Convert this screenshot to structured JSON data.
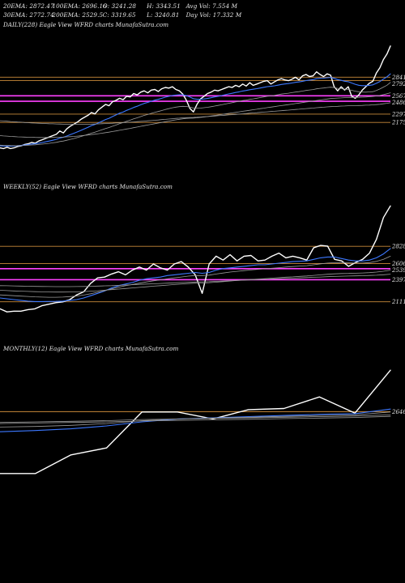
{
  "header": {
    "row1": [
      "20EMA: 2872.47",
      "100EMA: 2696.16",
      "O: 3241.28",
      "H: 3343.51",
      "Avg Vol: 7.554  M"
    ],
    "row2": [
      "30EMA: 2772.74",
      "200EMA: 2529.5",
      "C: 3319.65",
      "L: 3240.81",
      "Day Vol: 17.332  M"
    ]
  },
  "colors": {
    "price": "#ffffff",
    "blue_ema": "#3c78ff",
    "magenta": "#ff40ff",
    "orange": "#c98a3a",
    "gray": "#9a9a9a",
    "background": "#000000"
  },
  "chart_data": [
    {
      "type": "line",
      "title": "DAILY(228) Eagle  View  WFRD charts MunafaSutra.com",
      "levels": [
        2841,
        2792,
        2567,
        2486,
        2297,
        2175
      ],
      "level_labels": [
        "2841",
        "2792",
        "2567",
        "2486",
        "2297",
        "2175"
      ],
      "ylim": [
        1450,
        3500
      ],
      "series": [
        {
          "role": "price",
          "values": [
            1800,
            1790,
            1810,
            1790,
            1800,
            1820,
            1830,
            1850,
            1860,
            1880,
            1870,
            1900,
            1920,
            1940,
            1960,
            1980,
            2000,
            2050,
            2020,
            2080,
            2120,
            2150,
            2180,
            2220,
            2250,
            2280,
            2320,
            2300,
            2360,
            2400,
            2440,
            2420,
            2480,
            2500,
            2530,
            2510,
            2560,
            2550,
            2600,
            2580,
            2620,
            2640,
            2610,
            2650,
            2660,
            2630,
            2670,
            2690,
            2680,
            2700,
            2660,
            2640,
            2590,
            2500,
            2380,
            2330,
            2440,
            2520,
            2560,
            2600,
            2620,
            2650,
            2640,
            2660,
            2680,
            2700,
            2690,
            2720,
            2700,
            2740,
            2710,
            2760,
            2720,
            2740,
            2760,
            2780,
            2790,
            2740,
            2770,
            2800,
            2820,
            2800,
            2790,
            2810,
            2840,
            2800,
            2860,
            2880,
            2850,
            2860,
            2920,
            2880,
            2850,
            2890,
            2870,
            2700,
            2640,
            2700,
            2650,
            2700,
            2560,
            2530,
            2580,
            2650,
            2700,
            2750,
            2780,
            2900,
            2980,
            3100,
            3180,
            3300
          ]
        },
        {
          "role": "ema20",
          "values": [
            1830,
            1828,
            1826,
            1826,
            1828,
            1832,
            1836,
            1842,
            1849,
            1856,
            1862,
            1870,
            1879,
            1890,
            1900,
            1912,
            1925,
            1945,
            1957,
            1975,
            1995,
            2015,
            2035,
            2058,
            2080,
            2103,
            2128,
            2145,
            2168,
            2192,
            2218,
            2236,
            2262,
            2285,
            2310,
            2327,
            2352,
            2372,
            2395,
            2413,
            2435,
            2455,
            2469,
            2487,
            2503,
            2514,
            2530,
            2546,
            2558,
            2572,
            2578,
            2582,
            2580,
            2570,
            2548,
            2524,
            2516,
            2516,
            2520,
            2528,
            2538,
            2550,
            2559,
            2570,
            2582,
            2594,
            2604,
            2616,
            2625,
            2637,
            2645,
            2656,
            2663,
            2672,
            2681,
            2692,
            2702,
            2706,
            2713,
            2723,
            2734,
            2741,
            2747,
            2755,
            2765,
            2770,
            2780,
            2791,
            2798,
            2805,
            2818,
            2824,
            2827,
            2833,
            2837,
            2823,
            2805,
            2795,
            2781,
            2774,
            2755,
            2736,
            2722,
            2716,
            2716,
            2721,
            2728,
            2750,
            2776,
            2812,
            2846,
            2890
          ]
        },
        {
          "role": "ema30",
          "values": [
            1840,
            1837,
            1836,
            1834,
            1833,
            1833,
            1834,
            1836,
            1840,
            1843,
            1846,
            1850,
            1855,
            1861,
            1867,
            1874,
            1882,
            1893,
            1901,
            1912,
            1925,
            1938,
            1952,
            1967,
            1983,
            2000,
            2017,
            2031,
            2048,
            2066,
            2085,
            2100,
            2119,
            2137,
            2157,
            2172,
            2191,
            2208,
            2227,
            2243,
            2261,
            2278,
            2292,
            2308,
            2323,
            2335,
            2350,
            2365,
            2377,
            2390,
            2400,
            2407,
            2412,
            2410,
            2400,
            2387,
            2384,
            2386,
            2391,
            2398,
            2406,
            2416,
            2425,
            2434,
            2445,
            2456,
            2465,
            2476,
            2485,
            2496,
            2504,
            2514,
            2522,
            2531,
            2540,
            2550,
            2560,
            2566,
            2573,
            2582,
            2592,
            2599,
            2605,
            2613,
            2622,
            2628,
            2636,
            2646,
            2652,
            2659,
            2669,
            2676,
            2681,
            2688,
            2693,
            2687,
            2677,
            2672,
            2664,
            2659,
            2648,
            2635,
            2626,
            2622,
            2621,
            2624,
            2628,
            2645,
            2667,
            2694,
            2722,
            2763
          ]
        },
        {
          "role": "ema100",
          "values": [
            1980,
            1976,
            1973,
            1969,
            1966,
            1963,
            1961,
            1959,
            1957,
            1956,
            1954,
            1953,
            1953,
            1953,
            1953,
            1954,
            1955,
            1957,
            1959,
            1962,
            1965,
            1969,
            1973,
            1978,
            1984,
            1990,
            1996,
            2002,
            2009,
            2016,
            2024,
            2032,
            2041,
            2050,
            2059,
            2068,
            2078,
            2087,
            2097,
            2107,
            2117,
            2127,
            2136,
            2146,
            2156,
            2165,
            2175,
            2185,
            2194,
            2204,
            2213,
            2221,
            2228,
            2234,
            2237,
            2239,
            2243,
            2249,
            2255,
            2262,
            2269,
            2277,
            2284,
            2292,
            2300,
            2308,
            2315,
            2323,
            2331,
            2339,
            2346,
            2354,
            2362,
            2369,
            2377,
            2385,
            2393,
            2400,
            2407,
            2415,
            2423,
            2430,
            2437,
            2444,
            2452,
            2459,
            2467,
            2475,
            2482,
            2489,
            2497,
            2505,
            2512,
            2519,
            2526,
            2530,
            2533,
            2536,
            2539,
            2542,
            2543,
            2543,
            2544,
            2546,
            2549,
            2553,
            2557,
            2564,
            2573,
            2584,
            2596,
            2611
          ]
        },
        {
          "role": "ema200",
          "values": [
            2200,
            2196,
            2192,
            2188,
            2184,
            2181,
            2178,
            2174,
            2171,
            2168,
            2165,
            2163,
            2160,
            2158,
            2156,
            2154,
            2152,
            2151,
            2149,
            2148,
            2148,
            2147,
            2147,
            2148,
            2148,
            2149,
            2150,
            2152,
            2153,
            2155,
            2158,
            2160,
            2163,
            2166,
            2169,
            2172,
            2175,
            2178,
            2182,
            2186,
            2190,
            2194,
            2198,
            2202,
            2207,
            2211,
            2216,
            2220,
            2225,
            2230,
            2234,
            2238,
            2242,
            2245,
            2247,
            2249,
            2251,
            2254,
            2258,
            2261,
            2265,
            2269,
            2273,
            2277,
            2281,
            2285,
            2289,
            2293,
            2297,
            2301,
            2305,
            2310,
            2314,
            2318,
            2322,
            2327,
            2331,
            2335,
            2339,
            2344,
            2348,
            2352,
            2356,
            2361,
            2365,
            2369,
            2374,
            2378,
            2382,
            2386,
            2391,
            2395,
            2399,
            2403,
            2407,
            2410,
            2412,
            2415,
            2417,
            2420,
            2421,
            2422,
            2424,
            2425,
            2428,
            2430,
            2433,
            2437,
            2442,
            2449,
            2456,
            2464
          ]
        }
      ]
    },
    {
      "type": "line",
      "title": "WEEKLY(52) Eagle  View  WFRD charts MunafaSutra.com",
      "levels": [
        2828,
        2606,
        2539,
        2397,
        2111
      ],
      "level_labels": [
        "2828",
        "2606",
        "2539",
        "2397",
        "2111"
      ],
      "ylim": [
        1700,
        3500
      ],
      "series": [
        {
          "role": "price",
          "values": [
            2020,
            1980,
            1990,
            1990,
            2010,
            2020,
            2060,
            2080,
            2100,
            2110,
            2140,
            2200,
            2240,
            2350,
            2420,
            2430,
            2470,
            2500,
            2460,
            2520,
            2560,
            2520,
            2600,
            2550,
            2520,
            2600,
            2630,
            2560,
            2460,
            2220,
            2600,
            2700,
            2650,
            2720,
            2640,
            2700,
            2710,
            2640,
            2650,
            2700,
            2740,
            2680,
            2700,
            2680,
            2650,
            2810,
            2840,
            2830,
            2660,
            2640,
            2570,
            2620,
            2660,
            2740,
            2920,
            3200,
            3350
          ]
        },
        {
          "role": "ema_a",
          "values": [
            2160,
            2150,
            2140,
            2130,
            2120,
            2114,
            2114,
            2115,
            2117,
            2120,
            2130,
            2140,
            2160,
            2190,
            2220,
            2250,
            2290,
            2320,
            2340,
            2360,
            2390,
            2410,
            2420,
            2430,
            2450,
            2460,
            2470,
            2480,
            2490,
            2480,
            2490,
            2520,
            2540,
            2550,
            2560,
            2570,
            2580,
            2590,
            2590,
            2600,
            2610,
            2620,
            2630,
            2635,
            2640,
            2660,
            2680,
            2690,
            2690,
            2670,
            2650,
            2640,
            2640,
            2650,
            2680,
            2730,
            2800
          ]
        },
        {
          "role": "ema_b",
          "values": [
            2200,
            2195,
            2190,
            2185,
            2180,
            2175,
            2172,
            2170,
            2170,
            2172,
            2178,
            2186,
            2198,
            2215,
            2235,
            2255,
            2278,
            2300,
            2318,
            2335,
            2352,
            2368,
            2382,
            2395,
            2408,
            2420,
            2432,
            2443,
            2450,
            2450,
            2456,
            2470,
            2483,
            2495,
            2505,
            2514,
            2523,
            2531,
            2538,
            2545,
            2552,
            2560,
            2567,
            2573,
            2578,
            2590,
            2602,
            2612,
            2617,
            2618,
            2615,
            2612,
            2612,
            2618,
            2633,
            2660,
            2700
          ]
        },
        {
          "role": "ema100",
          "values": [
            2260,
            2256,
            2252,
            2248,
            2245,
            2242,
            2240,
            2238,
            2237,
            2237,
            2238,
            2240,
            2243,
            2248,
            2254,
            2261,
            2268,
            2276,
            2283,
            2290,
            2298,
            2305,
            2313,
            2320,
            2327,
            2334,
            2341,
            2347,
            2352,
            2354,
            2358,
            2365,
            2372,
            2379,
            2386,
            2393,
            2399,
            2405,
            2411,
            2417,
            2423,
            2429,
            2434,
            2440,
            2445,
            2452,
            2460,
            2467,
            2472,
            2476,
            2478,
            2481,
            2484,
            2488,
            2495,
            2506,
            2520
          ]
        },
        {
          "role": "ema200",
          "values": [
            2320,
            2318,
            2316,
            2314,
            2312,
            2310,
            2309,
            2308,
            2307,
            2307,
            2307,
            2308,
            2309,
            2311,
            2314,
            2317,
            2320,
            2324,
            2328,
            2332,
            2336,
            2340,
            2344,
            2348,
            2352,
            2356,
            2360,
            2364,
            2367,
            2369,
            2371,
            2375,
            2379,
            2383,
            2387,
            2391,
            2395,
            2399,
            2402,
            2406,
            2410,
            2413,
            2417,
            2420,
            2424,
            2428,
            2432,
            2436,
            2439,
            2442,
            2444,
            2446,
            2448,
            2451,
            2455,
            2461,
            2468
          ]
        }
      ]
    },
    {
      "type": "line",
      "title": "MONTHLY(12) Eagle  View  WFRD charts MunafaSutra.com",
      "levels": [
        2646
      ],
      "level_labels": [
        "2646"
      ],
      "ylim": [
        1200,
        3600
      ],
      "series": [
        {
          "role": "price",
          "values": [
            1580,
            1580,
            1900,
            2020,
            2640,
            2640,
            2520,
            2680,
            2700,
            2900,
            2620,
            3360
          ]
        },
        {
          "role": "ema_a",
          "values": [
            2300,
            2320,
            2350,
            2400,
            2470,
            2520,
            2540,
            2560,
            2580,
            2600,
            2610,
            2690
          ]
        },
        {
          "role": "ema_b",
          "values": [
            2380,
            2390,
            2410,
            2440,
            2490,
            2520,
            2535,
            2550,
            2565,
            2580,
            2590,
            2640
          ]
        },
        {
          "role": "ema100",
          "values": [
            2460,
            2470,
            2480,
            2490,
            2510,
            2520,
            2530,
            2540,
            2550,
            2560,
            2570,
            2590
          ]
        },
        {
          "role": "ema200",
          "values": [
            2440,
            2450,
            2460,
            2470,
            2485,
            2495,
            2505,
            2515,
            2525,
            2535,
            2545,
            2565
          ]
        }
      ]
    }
  ]
}
